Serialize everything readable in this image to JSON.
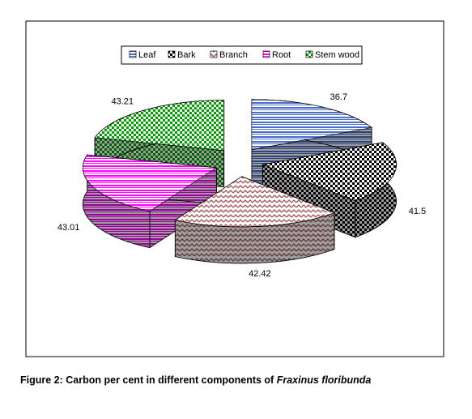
{
  "chart_data": {
    "type": "pie",
    "categories": [
      "Leaf",
      "Bark",
      "Branch",
      "Root",
      "Stem wood"
    ],
    "values": [
      36.7,
      41.5,
      42.42,
      43.01,
      43.21
    ],
    "colors": [
      "#4a6cc8",
      "#000000",
      "#a85a5a",
      "#ff00ff",
      "#00a000"
    ],
    "patterns": [
      "stripes",
      "checker",
      "zigzag",
      "stripes",
      "checker"
    ],
    "legend": "top",
    "exploded": true,
    "three_d": true
  },
  "caption": {
    "text": "Figure 2: Carbon per cent in different components of",
    "species": "Fraxinus floribunda"
  }
}
